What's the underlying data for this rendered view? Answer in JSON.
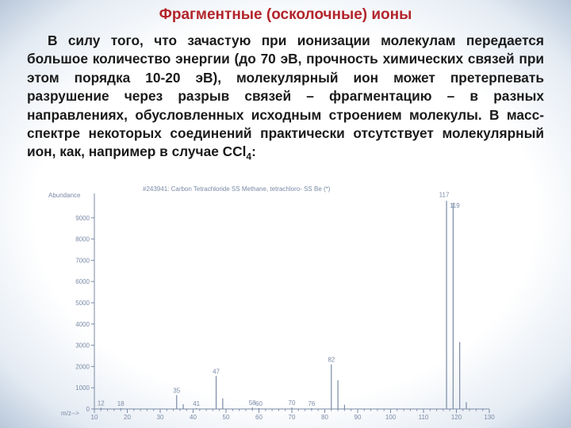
{
  "slide": {
    "title": "Фрагментные (осколочные) ионы",
    "paragraph_main": "В силу того, что зачастую при ионизации молекулам передается большое количество энергии (до 70 эВ, прочность химических связей при этом порядка 10-20 эВ), молекулярный ион может претерпевать разрушение через разрыв связей – фрагментацию – в разных направлениях, обусловленных исходным строением молекулы. В масс-спектре некоторых соединений практически отсутствует молекулярный ион, как, например в случае CCl",
    "formula_subscript": "4",
    "formula_tail": ":",
    "title_color": "#b3242b",
    "spectrum_color": "#7a8aa6"
  },
  "chart_data": {
    "type": "bar",
    "title": "#243941: Carbon Tetrachloride SS Methane, tetrachloro- SS Be (*)",
    "ylabel": "Abundance",
    "xlabel": "m/z-->",
    "xlim": [
      10,
      130
    ],
    "ylim": [
      0,
      10000
    ],
    "xticks": [
      10,
      20,
      30,
      40,
      50,
      60,
      70,
      80,
      90,
      100,
      110,
      120,
      130
    ],
    "yticks": [
      0,
      1000,
      2000,
      3000,
      4000,
      5000,
      6000,
      7000,
      8000,
      9000
    ],
    "peaks": [
      {
        "mz": 12,
        "value": 60,
        "label": "12"
      },
      {
        "mz": 18,
        "value": 40,
        "label": "18"
      },
      {
        "mz": 35,
        "value": 650,
        "label": "35"
      },
      {
        "mz": 37,
        "value": 220,
        "label": ""
      },
      {
        "mz": 41,
        "value": 40,
        "label": "41"
      },
      {
        "mz": 47,
        "value": 1550,
        "label": "47"
      },
      {
        "mz": 49,
        "value": 500,
        "label": ""
      },
      {
        "mz": 58,
        "value": 70,
        "label": "58"
      },
      {
        "mz": 60,
        "value": 40,
        "label": "60"
      },
      {
        "mz": 70,
        "value": 70,
        "label": "70"
      },
      {
        "mz": 76,
        "value": 40,
        "label": "76"
      },
      {
        "mz": 82,
        "value": 2100,
        "label": "82"
      },
      {
        "mz": 84,
        "value": 1350,
        "label": ""
      },
      {
        "mz": 86,
        "value": 200,
        "label": ""
      },
      {
        "mz": 117,
        "value": 9800,
        "label": "117"
      },
      {
        "mz": 119,
        "value": 9700,
        "label": "119"
      },
      {
        "mz": 121,
        "value": 3150,
        "label": ""
      },
      {
        "mz": 123,
        "value": 320,
        "label": ""
      }
    ]
  }
}
